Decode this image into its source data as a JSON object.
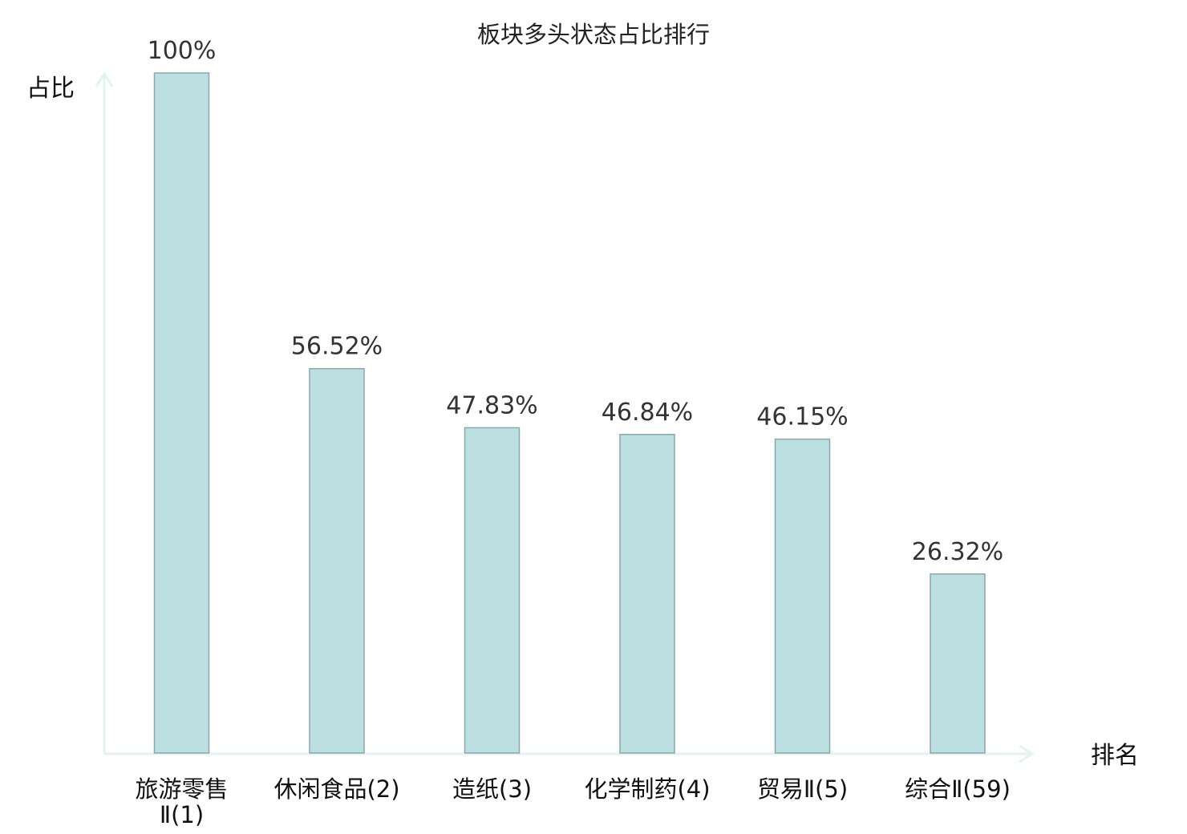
{
  "chart_data": {
    "type": "bar",
    "title": "板块多头状态占比排行",
    "ylabel": "占比",
    "xlabel": "排名",
    "categories": [
      [
        "旅游零售",
        "Ⅱ(1)"
      ],
      [
        "休闲食品(2)"
      ],
      [
        "造纸(3)"
      ],
      [
        "化学制药(4)"
      ],
      [
        "贸易Ⅱ(5)"
      ],
      [
        "综合Ⅱ(59)"
      ]
    ],
    "values": [
      100,
      56.52,
      47.83,
      46.84,
      46.15,
      26.32
    ],
    "value_labels": [
      "100%",
      "56.52%",
      "47.83%",
      "46.84%",
      "46.15%",
      "26.32%"
    ],
    "highlight_index": 5,
    "ylim": [
      0,
      100
    ],
    "grid": false,
    "legend": "none"
  },
  "colors": {
    "bar_fill": "#bce0e2",
    "bar_stroke": "#8aa7ab",
    "axis": "#e2f3f1",
    "text": "#111111",
    "value_text": "#333333",
    "highlight_text": "#e02020"
  }
}
